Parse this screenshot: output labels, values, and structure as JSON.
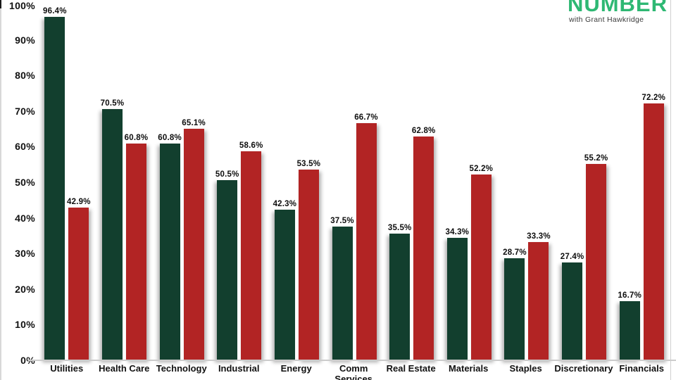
{
  "logo": {
    "title": "NUMBER",
    "subtitle": "with Grant Hawkridge",
    "color": "#2eb873"
  },
  "chart_data": {
    "type": "bar",
    "title": "",
    "xlabel": "",
    "ylabel": "",
    "ylim": [
      0,
      100
    ],
    "grid": false,
    "legend": "none",
    "y_ticks": [
      "0%",
      "10%",
      "20%",
      "30%",
      "40%",
      "50%",
      "60%",
      "70%",
      "80%",
      "90%",
      "100%"
    ],
    "categories": [
      "Utilities",
      "Health Care",
      "Technology",
      "Industrial",
      "Energy",
      "Comm Services",
      "Real Estate",
      "Materials",
      "Staples",
      "Discretionary",
      "Financials"
    ],
    "series": [
      {
        "name": "green",
        "color": "#123f2e",
        "values": [
          96.4,
          70.5,
          60.8,
          50.5,
          42.3,
          37.5,
          35.5,
          34.3,
          28.7,
          27.4,
          16.7
        ],
        "labels": [
          "96.4%",
          "70.5%",
          "60.8%",
          "50.5%",
          "42.3%",
          "37.5%",
          "35.5%",
          "34.3%",
          "28.7%",
          "27.4%",
          "16.7%"
        ]
      },
      {
        "name": "red",
        "color": "#b22424",
        "values": [
          42.9,
          60.8,
          65.1,
          58.6,
          53.5,
          66.7,
          62.8,
          52.2,
          33.3,
          55.2,
          72.2
        ],
        "labels": [
          "42.9%",
          "60.8%",
          "65.1%",
          "58.6%",
          "53.5%",
          "66.7%",
          "62.8%",
          "52.2%",
          "33.3%",
          "55.2%",
          "72.2%"
        ]
      }
    ]
  }
}
